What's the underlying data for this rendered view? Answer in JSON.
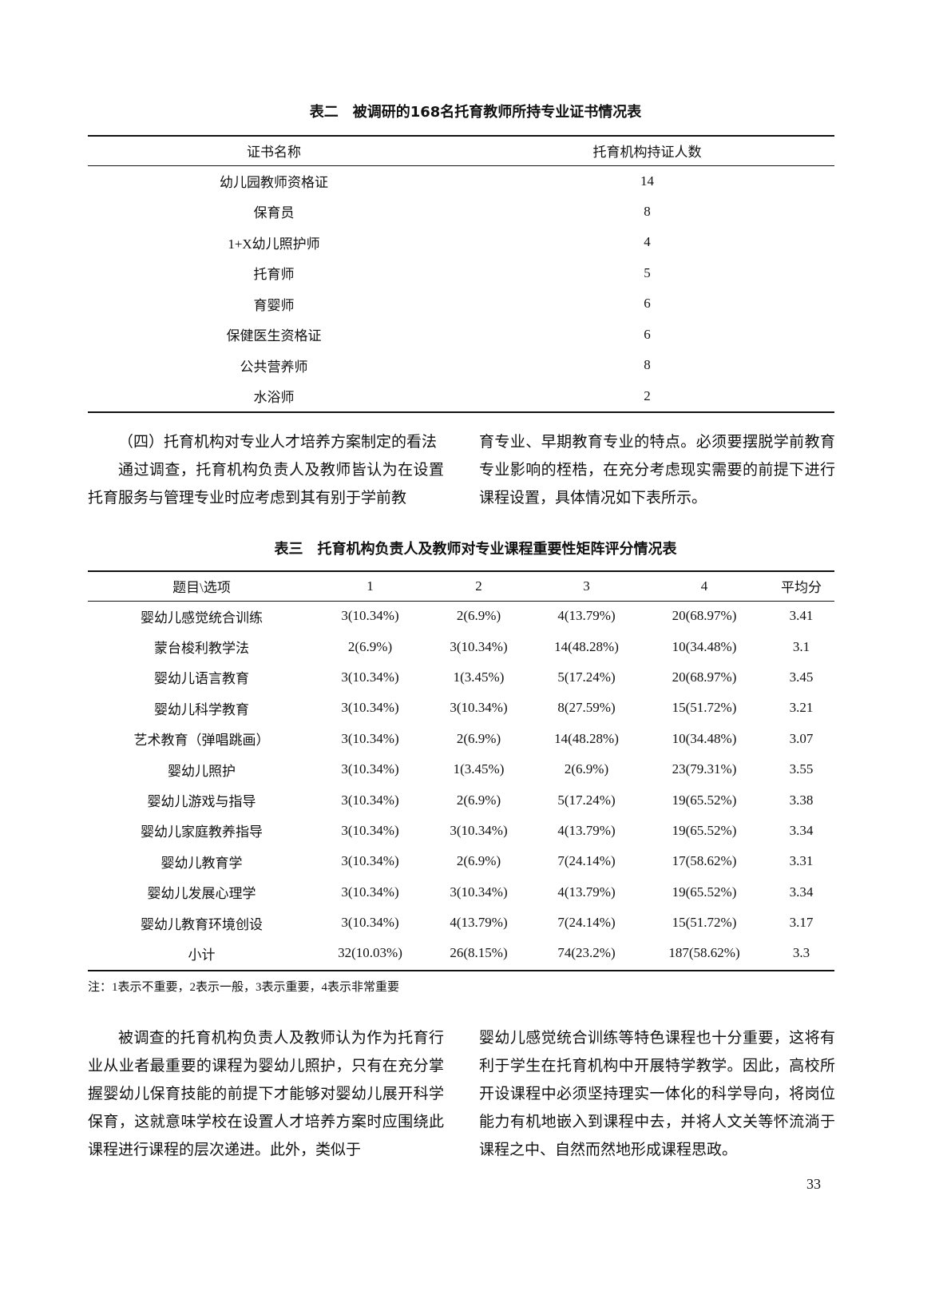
{
  "table2": {
    "title": "表二　被调研的168名托育教师所持专业证书情况表",
    "headers": [
      "证书名称",
      "托育机构持证人数"
    ],
    "rows": [
      [
        "幼儿园教师资格证",
        "14"
      ],
      [
        "保育员",
        "8"
      ],
      [
        "1+X幼儿照护师",
        "4"
      ],
      [
        "托育师",
        "5"
      ],
      [
        "育婴师",
        "6"
      ],
      [
        "保健医生资格证",
        "6"
      ],
      [
        "公共营养师",
        "8"
      ],
      [
        "水浴师",
        "2"
      ]
    ]
  },
  "section": {
    "heading": "（四）托育机构对专业人才培养方案制定的看法",
    "left_text": "通过调查，托育机构负责人及教师皆认为在设置托育服务与管理专业时应考虑到其有别于学前教",
    "right_text": "育专业、早期教育专业的特点。必须要摆脱学前教育专业影响的桎梏，在充分考虑现实需要的前提下进行课程设置，具体情况如下表所示。"
  },
  "table3": {
    "title": "表三　托育机构负责人及教师对专业课程重要性矩阵评分情况表",
    "headers": [
      "题目\\选项",
      "1",
      "2",
      "3",
      "4",
      "平均分"
    ],
    "rows": [
      [
        "婴幼儿感觉统合训练",
        "3(10.34%)",
        "2(6.9%)",
        "4(13.79%)",
        "20(68.97%)",
        "3.41"
      ],
      [
        "蒙台梭利教学法",
        "2(6.9%)",
        "3(10.34%)",
        "14(48.28%)",
        "10(34.48%)",
        "3.1"
      ],
      [
        "婴幼儿语言教育",
        "3(10.34%)",
        "1(3.45%)",
        "5(17.24%)",
        "20(68.97%)",
        "3.45"
      ],
      [
        "婴幼儿科学教育",
        "3(10.34%)",
        "3(10.34%)",
        "8(27.59%)",
        "15(51.72%)",
        "3.21"
      ],
      [
        "艺术教育（弹唱跳画）",
        "3(10.34%)",
        "2(6.9%)",
        "14(48.28%)",
        "10(34.48%)",
        "3.07"
      ],
      [
        "婴幼儿照护",
        "3(10.34%)",
        "1(3.45%)",
        "2(6.9%)",
        "23(79.31%)",
        "3.55"
      ],
      [
        "婴幼儿游戏与指导",
        "3(10.34%)",
        "2(6.9%)",
        "5(17.24%)",
        "19(65.52%)",
        "3.38"
      ],
      [
        "婴幼儿家庭教养指导",
        "3(10.34%)",
        "3(10.34%)",
        "4(13.79%)",
        "19(65.52%)",
        "3.34"
      ],
      [
        "婴幼儿教育学",
        "3(10.34%)",
        "2(6.9%)",
        "7(24.14%)",
        "17(58.62%)",
        "3.31"
      ],
      [
        "婴幼儿发展心理学",
        "3(10.34%)",
        "3(10.34%)",
        "4(13.79%)",
        "19(65.52%)",
        "3.34"
      ],
      [
        "婴幼儿教育环境创设",
        "3(10.34%)",
        "4(13.79%)",
        "7(24.14%)",
        "15(51.72%)",
        "3.17"
      ],
      [
        "小计",
        "32(10.03%)",
        "26(8.15%)",
        "74(23.2%)",
        "187(58.62%)",
        "3.3"
      ]
    ],
    "note": "注：1表示不重要，2表示一般，3表示重要，4表示非常重要"
  },
  "conclusion": {
    "left_text": "被调查的托育机构负责人及教师认为作为托育行业从业者最重要的课程为婴幼儿照护，只有在充分掌握婴幼儿保育技能的前提下才能够对婴幼儿展开科学保育，这就意味学校在设置人才培养方案时应围绕此课程进行课程的层次递进。此外，类似于",
    "right_text": "婴幼儿感觉统合训练等特色课程也十分重要，这将有利于学生在托育机构中开展特学教学。因此，高校所开设课程中必须坚持理实一体化的科学导向，将岗位能力有机地嵌入到课程中去，并将人文关等怀流淌于课程之中、自然而然地形成课程思政。"
  },
  "page_number": "33"
}
